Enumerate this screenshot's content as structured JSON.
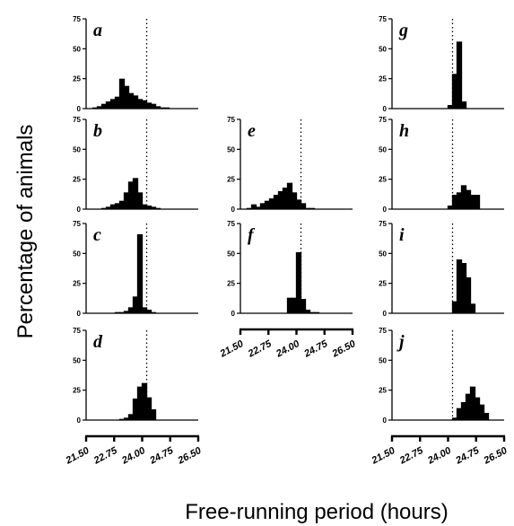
{
  "figure": {
    "ylabel": "Percentage of animals",
    "xlabel": "Free-running period (hours)",
    "y_ticks": [
      0,
      25,
      50,
      75
    ],
    "x_tick_labels": [
      "21.50",
      "22.75",
      "24.00",
      "24.75",
      "26.50"
    ]
  },
  "chart_data": [
    {
      "type": "bar",
      "panel": "a",
      "xlim": [
        21.5,
        26.5
      ],
      "ylim": [
        0,
        75
      ],
      "reference_line_x": 24.2,
      "x": [
        21.9,
        22.1,
        22.3,
        22.5,
        22.7,
        22.9,
        23.1,
        23.3,
        23.5,
        23.7,
        23.9,
        24.1,
        24.3,
        24.5,
        24.7,
        24.9,
        25.1
      ],
      "values": [
        1,
        2,
        4,
        6,
        8,
        10,
        25,
        19,
        13,
        11,
        8,
        7,
        5,
        4,
        2,
        1,
        1
      ]
    },
    {
      "type": "bar",
      "panel": "b",
      "xlim": [
        21.5,
        26.5
      ],
      "ylim": [
        0,
        75
      ],
      "reference_line_x": 24.2,
      "x": [
        22.3,
        22.5,
        22.7,
        22.9,
        23.1,
        23.3,
        23.5,
        23.7,
        23.9,
        24.1,
        24.3,
        24.5,
        24.7
      ],
      "values": [
        1,
        2,
        4,
        5,
        7,
        14,
        23,
        26,
        14,
        4,
        3,
        2,
        1
      ]
    },
    {
      "type": "bar",
      "panel": "c",
      "xlim": [
        21.5,
        26.5
      ],
      "ylim": [
        0,
        75
      ],
      "reference_line_x": 24.2,
      "x": [
        22.9,
        23.1,
        23.3,
        23.5,
        23.7,
        23.9,
        24.1,
        24.3,
        24.5
      ],
      "values": [
        1,
        1,
        2,
        5,
        14,
        66,
        5,
        3,
        1
      ]
    },
    {
      "type": "bar",
      "panel": "d",
      "xlim": [
        21.5,
        26.5
      ],
      "ylim": [
        0,
        75
      ],
      "reference_line_x": 24.2,
      "x": [
        23.1,
        23.3,
        23.5,
        23.7,
        23.9,
        24.1,
        24.3,
        24.5
      ],
      "values": [
        1,
        2,
        5,
        18,
        28,
        31,
        19,
        9
      ]
    },
    {
      "type": "bar",
      "panel": "e",
      "xlim": [
        21.5,
        26.5
      ],
      "ylim": [
        0,
        75
      ],
      "reference_line_x": 24.2,
      "x": [
        21.9,
        22.1,
        22.3,
        22.5,
        22.7,
        22.9,
        23.1,
        23.3,
        23.5,
        23.7,
        23.9,
        24.1,
        24.3,
        24.5,
        24.7
      ],
      "values": [
        1,
        4,
        2,
        5,
        7,
        9,
        12,
        15,
        18,
        22,
        14,
        8,
        5,
        1,
        1
      ]
    },
    {
      "type": "bar",
      "panel": "f",
      "xlim": [
        21.5,
        26.5
      ],
      "ylim": [
        0,
        75
      ],
      "reference_line_x": 24.2,
      "x": [
        23.7,
        23.9,
        24.1,
        24.3,
        24.5,
        24.7,
        24.9
      ],
      "values": [
        13,
        13,
        51,
        12,
        3,
        1,
        1
      ]
    },
    {
      "type": "bar",
      "panel": "g",
      "xlim": [
        21.5,
        26.5
      ],
      "ylim": [
        0,
        75
      ],
      "reference_line_x": 24.2,
      "x": [
        24.1,
        24.3,
        24.5,
        24.7
      ],
      "values": [
        3,
        29,
        56,
        6
      ]
    },
    {
      "type": "bar",
      "panel": "h",
      "xlim": [
        21.5,
        26.5
      ],
      "ylim": [
        0,
        75
      ],
      "reference_line_x": 24.2,
      "x": [
        24.1,
        24.3,
        24.5,
        24.7,
        24.9,
        25.1,
        25.3
      ],
      "values": [
        3,
        12,
        14,
        20,
        16,
        12,
        12
      ]
    },
    {
      "type": "bar",
      "panel": "i",
      "xlim": [
        21.5,
        26.5
      ],
      "ylim": [
        0,
        75
      ],
      "reference_line_x": 24.2,
      "x": [
        24.3,
        24.5,
        24.7,
        24.9,
        25.1
      ],
      "values": [
        10,
        45,
        42,
        30,
        8
      ]
    },
    {
      "type": "bar",
      "panel": "j",
      "xlim": [
        21.5,
        26.5
      ],
      "ylim": [
        0,
        75
      ],
      "reference_line_x": 24.2,
      "x": [
        24.3,
        24.5,
        24.7,
        24.9,
        25.1,
        25.3,
        25.5,
        25.7
      ],
      "values": [
        2,
        10,
        15,
        22,
        28,
        19,
        13,
        6
      ]
    }
  ]
}
